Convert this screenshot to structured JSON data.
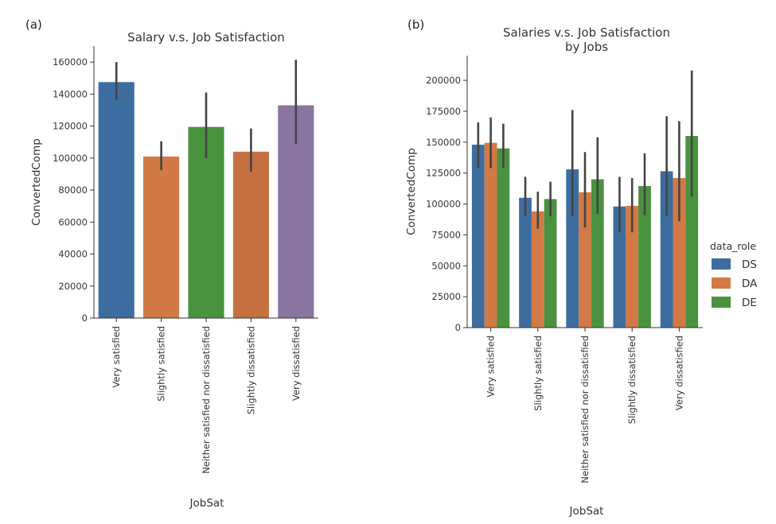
{
  "chart_data": [
    {
      "panel_label": "(a)",
      "type": "bar",
      "title": "Salary v.s. Job Satisfaction",
      "xlabel": "JobSat",
      "ylabel": "ConvertedComp",
      "ylim": [
        0,
        170000
      ],
      "yticks": [
        0,
        20000,
        40000,
        60000,
        80000,
        100000,
        120000,
        140000,
        160000
      ],
      "categories": [
        "Very satisfied",
        "Slightly satisfied",
        "Neither satisfied nor dissatisfied",
        "Slightly dissatisfied",
        "Very dissatisfied"
      ],
      "values": [
        147500,
        101000,
        119500,
        104000,
        133000
      ],
      "error_low": [
        136500,
        92500,
        100000,
        91500,
        109000
      ],
      "error_high": [
        160000,
        110500,
        141000,
        118500,
        161500
      ],
      "colors": [
        "#3d6d9e",
        "#d17a45",
        "#4a923f",
        "#c4703f",
        "#8a75a0"
      ],
      "grid": false,
      "legend": "none"
    },
    {
      "panel_label": "(b)",
      "type": "bar",
      "title": "Salaries v.s. Job Satisfaction\nby Jobs",
      "title_lines": [
        "Salaries v.s. Job Satisfaction",
        "by Jobs"
      ],
      "xlabel": "JobSat",
      "ylabel": "ConvertedComp",
      "ylim": [
        0,
        220000
      ],
      "yticks": [
        0,
        25000,
        50000,
        75000,
        100000,
        125000,
        150000,
        175000,
        200000
      ],
      "categories": [
        "Very satisfied",
        "Slightly satisfied",
        "Neither satisfied nor dissatisfied",
        "Slightly dissatisfied",
        "Very dissatisfied"
      ],
      "legend_title": "data_role",
      "legend": "right",
      "grid": false,
      "series": [
        {
          "name": "DS",
          "color": "#3d6d9e",
          "values": [
            148000,
            105000,
            128000,
            98000,
            126500
          ],
          "error_low": [
            129000,
            90000,
            90000,
            77000,
            90000
          ],
          "error_high": [
            166000,
            122000,
            176000,
            122000,
            171000
          ]
        },
        {
          "name": "DA",
          "color": "#d17a45",
          "values": [
            149500,
            94000,
            109500,
            98500,
            121000
          ],
          "error_low": [
            129000,
            80000,
            81000,
            77000,
            86000
          ],
          "error_high": [
            170000,
            110000,
            142000,
            121000,
            167000
          ]
        },
        {
          "name": "DE",
          "color": "#4a923f",
          "values": [
            145000,
            104000,
            120000,
            114500,
            155000
          ],
          "error_low": [
            129000,
            90000,
            92000,
            91000,
            106000
          ],
          "error_high": [
            165000,
            118000,
            154000,
            141000,
            208000
          ]
        }
      ]
    }
  ]
}
